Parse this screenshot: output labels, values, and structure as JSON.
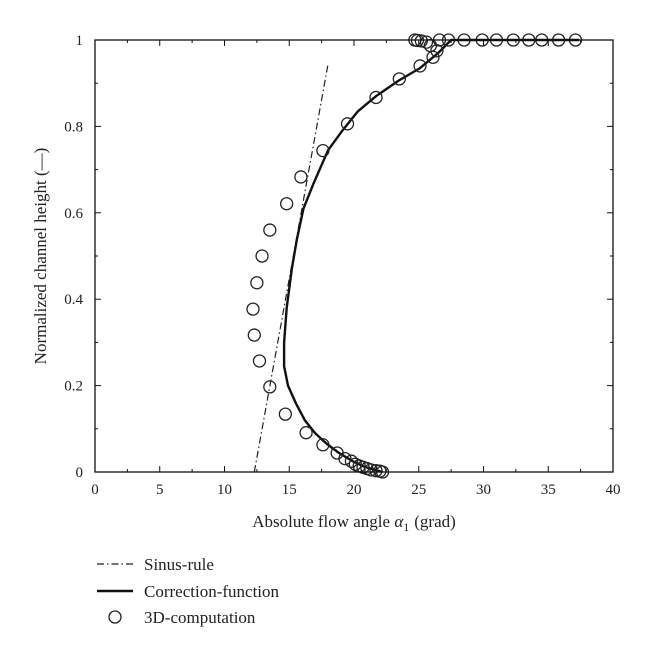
{
  "chart_data": {
    "type": "line",
    "xlabel": "Absolute flow angle",
    "xlabel_symbol": "α",
    "xlabel_subscript": "1",
    "xlabel_unit": "(grad)",
    "ylabel": "Normalized channel height (—)",
    "xlim": [
      0,
      40
    ],
    "ylim": [
      0,
      1
    ],
    "xticks": [
      0,
      5,
      10,
      15,
      20,
      25,
      30,
      35,
      40
    ],
    "yticks": [
      0,
      0.2,
      0.4,
      0.6,
      0.8,
      1
    ],
    "xtick_labels": [
      "0",
      "5",
      "10",
      "15",
      "20",
      "25",
      "30",
      "35",
      "40"
    ],
    "ytick_labels": [
      "0",
      "0.2",
      "0.4",
      "0.6",
      "0.8",
      "1"
    ],
    "grid": false,
    "legend_position": "bottom-left",
    "series": [
      {
        "name": "Sinus-rule",
        "style": "dash-dot",
        "color": "#222222",
        "x": [
          12.3,
          18.0
        ],
        "y": [
          0.0,
          0.945
        ]
      },
      {
        "name": "Correction-function",
        "style": "solid",
        "color": "#111111",
        "x": [
          22.2,
          21.6,
          20.8,
          19.9,
          18.8,
          17.9,
          17.0,
          16.2,
          15.5,
          14.9,
          14.6,
          14.6,
          14.8,
          15.2,
          15.6,
          16.1,
          16.9,
          18.0,
          19.1,
          20.3,
          21.7,
          23.4,
          25.1,
          26.5,
          27.5,
          30.0,
          35.0,
          37.4
        ],
        "y": [
          0.0,
          0.005,
          0.012,
          0.025,
          0.045,
          0.065,
          0.09,
          0.12,
          0.16,
          0.2,
          0.245,
          0.3,
          0.38,
          0.47,
          0.54,
          0.61,
          0.67,
          0.745,
          0.79,
          0.835,
          0.87,
          0.905,
          0.935,
          0.97,
          1.0,
          1.0,
          1.0,
          1.0
        ]
      },
      {
        "name": "3D-computation",
        "style": "marker-circle",
        "color": "#222222",
        "x": [
          22.2,
          22.0,
          21.7,
          21.3,
          21.0,
          20.7,
          20.4,
          20.1,
          19.8,
          19.3,
          18.7,
          17.6,
          16.3,
          14.7,
          13.5,
          12.7,
          12.3,
          12.2,
          12.5,
          12.9,
          13.5,
          14.8,
          15.9,
          17.6,
          19.5,
          21.7,
          23.5,
          25.1,
          26.1,
          26.4,
          25.9,
          25.6,
          25.2,
          24.9,
          24.7,
          26.6,
          27.3,
          28.5,
          29.9,
          31.0,
          32.3,
          33.5,
          34.5,
          35.8,
          37.1
        ],
        "y": [
          0.0,
          0.002,
          0.003,
          0.005,
          0.008,
          0.011,
          0.014,
          0.018,
          0.025,
          0.031,
          0.044,
          0.063,
          0.091,
          0.134,
          0.197,
          0.257,
          0.317,
          0.377,
          0.438,
          0.5,
          0.56,
          0.621,
          0.683,
          0.744,
          0.806,
          0.867,
          0.91,
          0.94,
          0.96,
          0.975,
          0.987,
          0.995,
          0.998,
          0.999,
          1.0,
          1.0,
          1.0,
          1.0,
          1.0,
          1.0,
          1.0,
          1.0,
          1.0,
          1.0,
          1.0
        ]
      }
    ]
  }
}
